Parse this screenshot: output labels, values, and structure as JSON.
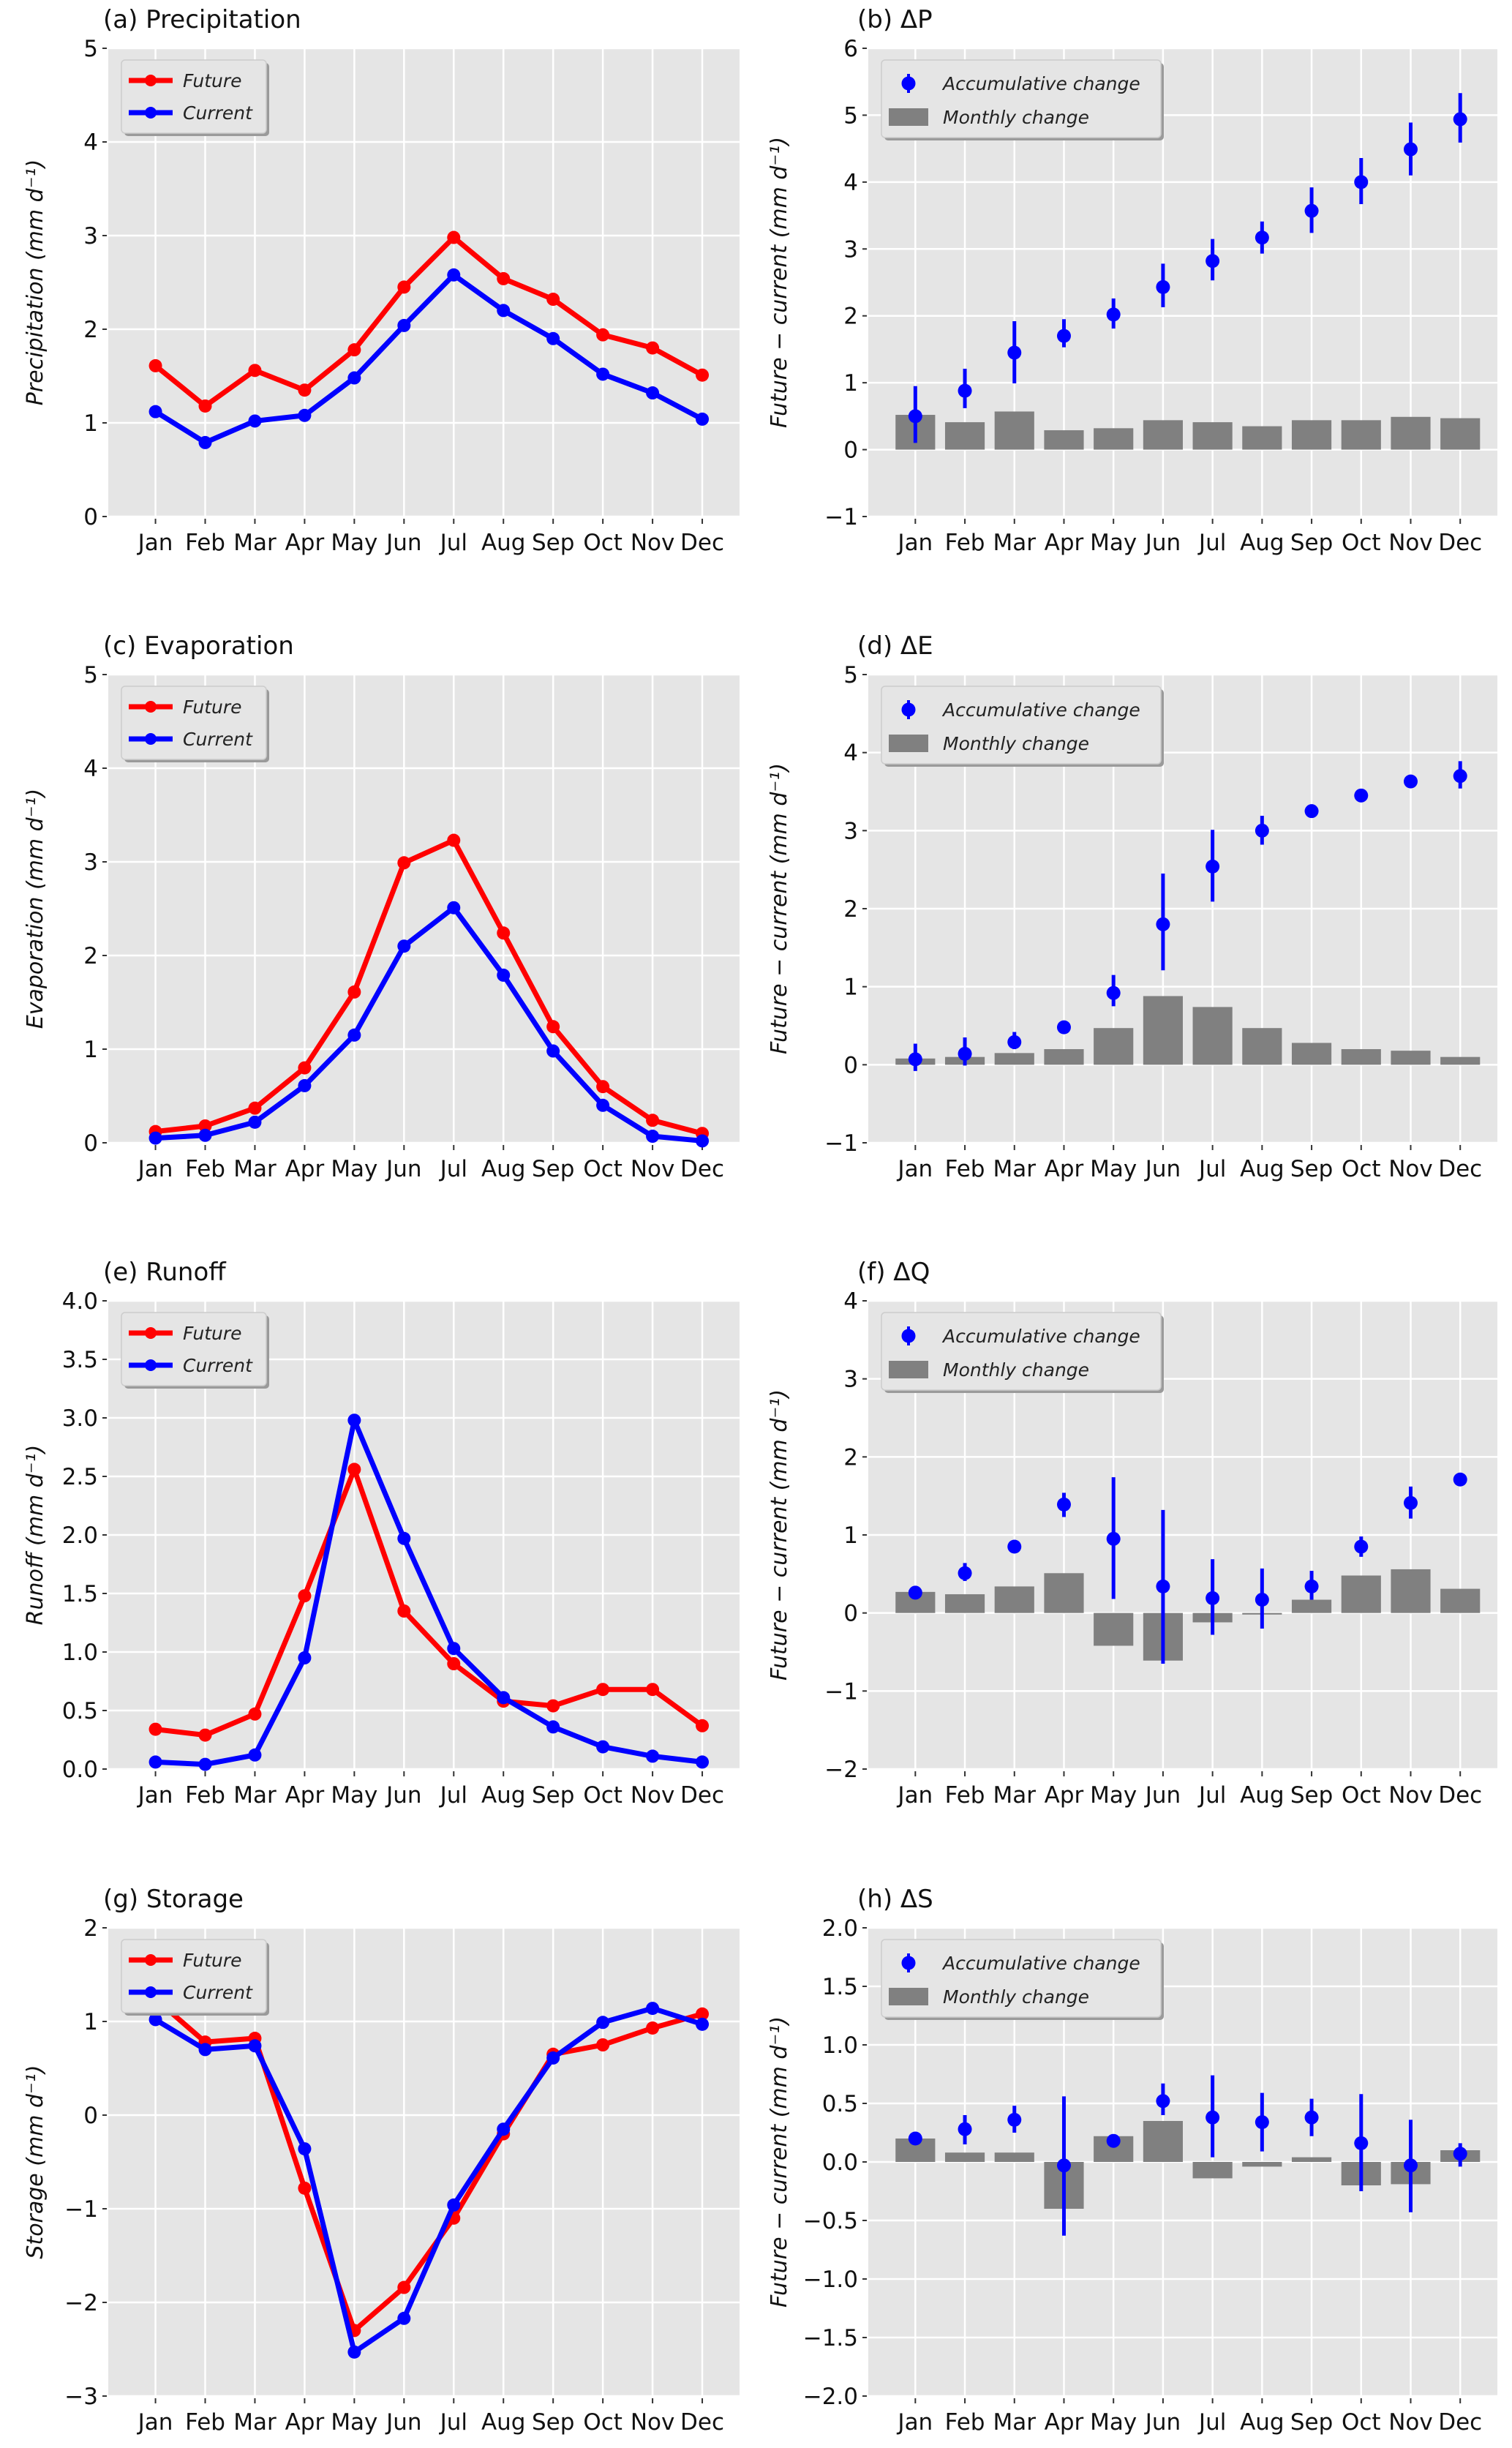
{
  "figure": {
    "months": [
      "Jan",
      "Feb",
      "Mar",
      "Apr",
      "May",
      "Jun",
      "Jul",
      "Aug",
      "Sep",
      "Oct",
      "Nov",
      "Dec"
    ],
    "colors": {
      "future": "#ff0000",
      "current": "#0000ff",
      "accumulative": "#0000ff",
      "monthly": "#808080",
      "panel_bg": "#e5e5e5",
      "grid": "#ffffff"
    }
  },
  "chart_data": [
    {
      "id": "a",
      "type": "line",
      "title": "(a) Precipitation",
      "ylabel": "Precipitation (mm d⁻¹)",
      "ylim": [
        0,
        5
      ],
      "yticks": [
        "0",
        "1",
        "2",
        "3",
        "4",
        "5"
      ],
      "ytick_values": [
        0,
        1,
        2,
        3,
        4,
        5
      ],
      "grid": true,
      "legend_position": "top-left",
      "categories": [
        "Jan",
        "Feb",
        "Mar",
        "Apr",
        "May",
        "Jun",
        "Jul",
        "Aug",
        "Sep",
        "Oct",
        "Nov",
        "Dec"
      ],
      "series": [
        {
          "name": "Future",
          "color": "#ff0000",
          "values": [
            1.61,
            1.18,
            1.56,
            1.35,
            1.78,
            2.45,
            2.98,
            2.54,
            2.32,
            1.94,
            1.8,
            1.51
          ]
        },
        {
          "name": "Current",
          "color": "#0000ff",
          "values": [
            1.12,
            0.79,
            1.02,
            1.08,
            1.48,
            2.04,
            2.58,
            2.2,
            1.9,
            1.52,
            1.32,
            1.04
          ]
        }
      ]
    },
    {
      "id": "b",
      "type": "bar",
      "title": "(b) ΔP",
      "ylabel": "Future − current (mm d⁻¹)",
      "ylim": [
        -1,
        6
      ],
      "yticks": [
        "−1",
        "0",
        "1",
        "2",
        "3",
        "4",
        "5",
        "6"
      ],
      "ytick_values": [
        -1,
        0,
        1,
        2,
        3,
        4,
        5,
        6
      ],
      "grid": true,
      "legend_position": "top-left",
      "categories": [
        "Jan",
        "Feb",
        "Mar",
        "Apr",
        "May",
        "Jun",
        "Jul",
        "Aug",
        "Sep",
        "Oct",
        "Nov",
        "Dec"
      ],
      "series": [
        {
          "name": "Monthly change",
          "kind": "bar",
          "color": "#808080",
          "values": [
            0.52,
            0.41,
            0.57,
            0.29,
            0.32,
            0.44,
            0.41,
            0.35,
            0.44,
            0.44,
            0.49,
            0.47
          ]
        },
        {
          "name": "Accumulative change",
          "kind": "errorbar",
          "color": "#0000ff",
          "values": [
            0.5,
            0.88,
            1.45,
            1.7,
            2.02,
            2.43,
            2.82,
            3.17,
            3.57,
            4.0,
            4.49,
            4.94
          ],
          "err_low": [
            0.1,
            0.62,
            0.99,
            1.53,
            1.81,
            2.13,
            2.53,
            2.93,
            3.24,
            3.67,
            4.1,
            4.59
          ],
          "err_high": [
            0.95,
            1.21,
            1.92,
            1.95,
            2.26,
            2.78,
            3.15,
            3.41,
            3.92,
            4.36,
            4.89,
            5.33
          ]
        }
      ]
    },
    {
      "id": "c",
      "type": "line",
      "title": "(c) Evaporation",
      "ylabel": "Evaporation (mm d⁻¹)",
      "ylim": [
        0,
        5
      ],
      "yticks": [
        "0",
        "1",
        "2",
        "3",
        "4",
        "5"
      ],
      "ytick_values": [
        0,
        1,
        2,
        3,
        4,
        5
      ],
      "grid": true,
      "legend_position": "top-left",
      "categories": [
        "Jan",
        "Feb",
        "Mar",
        "Apr",
        "May",
        "Jun",
        "Jul",
        "Aug",
        "Sep",
        "Oct",
        "Nov",
        "Dec"
      ],
      "series": [
        {
          "name": "Future",
          "color": "#ff0000",
          "values": [
            0.12,
            0.18,
            0.37,
            0.8,
            1.61,
            2.99,
            3.23,
            2.24,
            1.24,
            0.6,
            0.24,
            0.1
          ]
        },
        {
          "name": "Current",
          "color": "#0000ff",
          "values": [
            0.05,
            0.08,
            0.22,
            0.61,
            1.15,
            2.1,
            2.51,
            1.79,
            0.98,
            0.4,
            0.07,
            0.02
          ]
        }
      ]
    },
    {
      "id": "d",
      "type": "bar",
      "title": "(d) ΔE",
      "ylabel": "Future − current (mm d⁻¹)",
      "ylim": [
        -1,
        5
      ],
      "yticks": [
        "−1",
        "0",
        "1",
        "2",
        "3",
        "4",
        "5"
      ],
      "ytick_values": [
        -1,
        0,
        1,
        2,
        3,
        4,
        5
      ],
      "grid": true,
      "legend_position": "top-left",
      "categories": [
        "Jan",
        "Feb",
        "Mar",
        "Apr",
        "May",
        "Jun",
        "Jul",
        "Aug",
        "Sep",
        "Oct",
        "Nov",
        "Dec"
      ],
      "series": [
        {
          "name": "Monthly change",
          "kind": "bar",
          "color": "#808080",
          "values": [
            0.08,
            0.1,
            0.15,
            0.2,
            0.47,
            0.88,
            0.74,
            0.47,
            0.28,
            0.2,
            0.18,
            0.1
          ]
        },
        {
          "name": "Accumulative change",
          "kind": "errorbar",
          "color": "#0000ff",
          "values": [
            0.07,
            0.14,
            0.29,
            0.48,
            0.92,
            1.8,
            2.54,
            3.0,
            3.25,
            3.45,
            3.63,
            3.7
          ],
          "err_low": [
            -0.08,
            -0.01,
            0.2,
            0.44,
            0.75,
            1.21,
            2.09,
            2.82,
            3.22,
            3.42,
            3.58,
            3.54
          ],
          "err_high": [
            0.27,
            0.35,
            0.42,
            0.53,
            1.15,
            2.45,
            3.01,
            3.19,
            3.28,
            3.49,
            3.68,
            3.89
          ]
        }
      ]
    },
    {
      "id": "e",
      "type": "line",
      "title": "(e) Runoff",
      "ylabel": "Runoff (mm d⁻¹)",
      "ylim": [
        0,
        4
      ],
      "yticks": [
        "0.0",
        "0.5",
        "1.0",
        "1.5",
        "2.0",
        "2.5",
        "3.0",
        "3.5",
        "4.0"
      ],
      "ytick_values": [
        0,
        0.5,
        1,
        1.5,
        2,
        2.5,
        3,
        3.5,
        4
      ],
      "grid": true,
      "legend_position": "top-left",
      "categories": [
        "Jan",
        "Feb",
        "Mar",
        "Apr",
        "May",
        "Jun",
        "Jul",
        "Aug",
        "Sep",
        "Oct",
        "Nov",
        "Dec"
      ],
      "series": [
        {
          "name": "Future",
          "color": "#ff0000",
          "values": [
            0.34,
            0.29,
            0.47,
            1.48,
            2.56,
            1.35,
            0.9,
            0.58,
            0.54,
            0.68,
            0.68,
            0.37
          ]
        },
        {
          "name": "Current",
          "color": "#0000ff",
          "values": [
            0.06,
            0.04,
            0.12,
            0.95,
            2.98,
            1.97,
            1.03,
            0.61,
            0.36,
            0.19,
            0.11,
            0.06
          ]
        }
      ]
    },
    {
      "id": "f",
      "type": "bar",
      "title": "(f) ΔQ",
      "ylabel": "Future − current (mm d⁻¹)",
      "ylim": [
        -2,
        4
      ],
      "yticks": [
        "−2",
        "−1",
        "0",
        "1",
        "2",
        "3",
        "4"
      ],
      "ytick_values": [
        -2,
        -1,
        0,
        1,
        2,
        3,
        4
      ],
      "grid": true,
      "legend_position": "top-left",
      "categories": [
        "Jan",
        "Feb",
        "Mar",
        "Apr",
        "May",
        "Jun",
        "Jul",
        "Aug",
        "Sep",
        "Oct",
        "Nov",
        "Dec"
      ],
      "series": [
        {
          "name": "Monthly change",
          "kind": "bar",
          "color": "#808080",
          "values": [
            0.27,
            0.24,
            0.34,
            0.51,
            -0.42,
            -0.61,
            -0.12,
            -0.02,
            0.17,
            0.48,
            0.56,
            0.31
          ]
        },
        {
          "name": "Accumulative change",
          "kind": "errorbar",
          "color": "#0000ff",
          "values": [
            0.26,
            0.51,
            0.85,
            1.39,
            0.95,
            0.34,
            0.19,
            0.17,
            0.34,
            0.85,
            1.41,
            1.71
          ],
          "err_low": [
            0.21,
            0.41,
            0.82,
            1.23,
            0.18,
            -0.65,
            -0.28,
            -0.2,
            0.17,
            0.72,
            1.21,
            1.68
          ],
          "err_high": [
            0.33,
            0.64,
            0.89,
            1.54,
            1.74,
            1.32,
            0.69,
            0.57,
            0.54,
            0.98,
            1.62,
            1.74
          ]
        }
      ]
    },
    {
      "id": "g",
      "type": "line",
      "title": "(g) Storage",
      "ylabel": "Storage (mm d⁻¹)",
      "ylim": [
        -3,
        2
      ],
      "yticks": [
        "−3",
        "−2",
        "−1",
        "0",
        "1",
        "2"
      ],
      "ytick_values": [
        -3,
        -2,
        -1,
        0,
        1,
        2
      ],
      "grid": true,
      "legend_position": "top-left",
      "categories": [
        "Jan",
        "Feb",
        "Mar",
        "Apr",
        "May",
        "Jun",
        "Jul",
        "Aug",
        "Sep",
        "Oct",
        "Nov",
        "Dec"
      ],
      "series": [
        {
          "name": "Future",
          "color": "#ff0000",
          "values": [
            1.24,
            0.78,
            0.82,
            -0.78,
            -2.3,
            -1.84,
            -1.1,
            -0.2,
            0.65,
            0.75,
            0.93,
            1.08
          ]
        },
        {
          "name": "Current",
          "color": "#0000ff",
          "values": [
            1.02,
            0.7,
            0.74,
            -0.36,
            -2.53,
            -2.17,
            -0.96,
            -0.15,
            0.61,
            0.99,
            1.14,
            0.97
          ]
        }
      ]
    },
    {
      "id": "h",
      "type": "bar",
      "title": "(h) ΔS",
      "ylabel": "Future − current (mm d⁻¹)",
      "ylim": [
        -2,
        2
      ],
      "yticks": [
        "−2.0",
        "−1.5",
        "−1.0",
        "−0.5",
        "0.0",
        "0.5",
        "1.0",
        "1.5",
        "2.0"
      ],
      "ytick_values": [
        -2,
        -1.5,
        -1,
        -0.5,
        0,
        0.5,
        1,
        1.5,
        2
      ],
      "grid": true,
      "legend_position": "top-left",
      "categories": [
        "Jan",
        "Feb",
        "Mar",
        "Apr",
        "May",
        "Jun",
        "Jul",
        "Aug",
        "Sep",
        "Oct",
        "Nov",
        "Dec"
      ],
      "series": [
        {
          "name": "Monthly change",
          "kind": "bar",
          "color": "#808080",
          "values": [
            0.2,
            0.08,
            0.08,
            -0.4,
            0.22,
            0.35,
            -0.14,
            -0.04,
            0.04,
            -0.2,
            -0.19,
            0.1
          ]
        },
        {
          "name": "Accumulative change",
          "kind": "errorbar",
          "color": "#0000ff",
          "values": [
            0.2,
            0.28,
            0.36,
            -0.03,
            0.18,
            0.52,
            0.38,
            0.34,
            0.38,
            0.16,
            -0.03,
            0.07
          ],
          "err_low": [
            0.18,
            0.15,
            0.25,
            -0.63,
            0.16,
            0.4,
            0.04,
            0.09,
            0.22,
            -0.25,
            -0.43,
            -0.04
          ],
          "err_high": [
            0.22,
            0.4,
            0.48,
            0.56,
            0.21,
            0.67,
            0.74,
            0.59,
            0.54,
            0.58,
            0.36,
            0.16
          ]
        }
      ]
    }
  ]
}
